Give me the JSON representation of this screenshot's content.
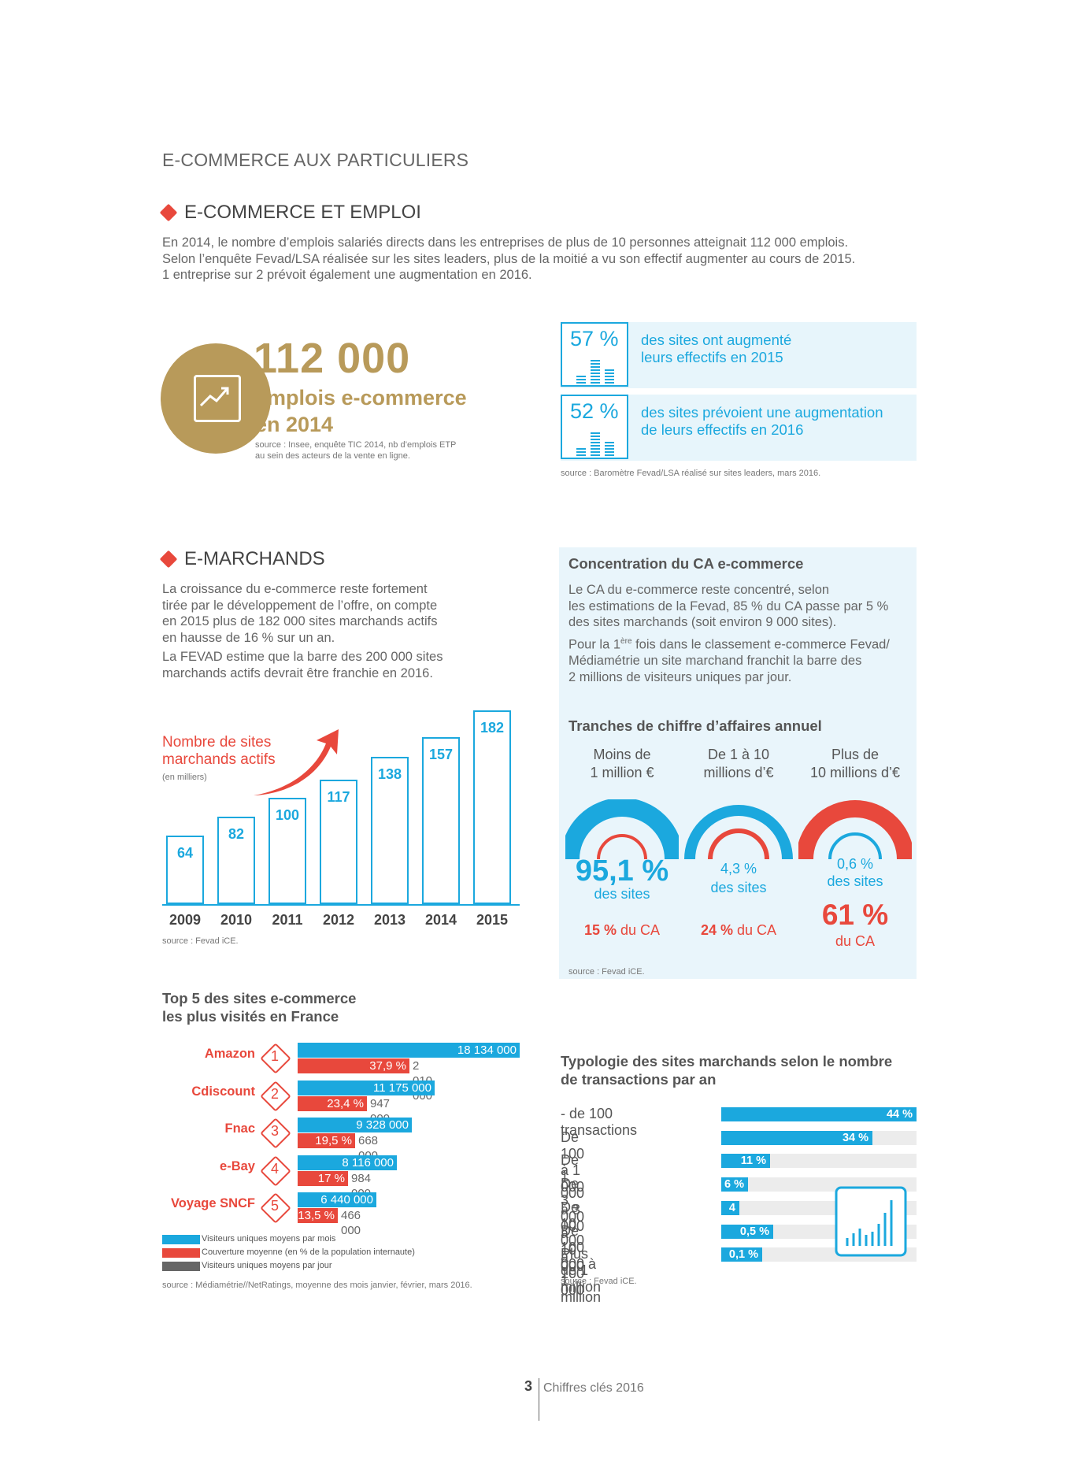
{
  "header": {
    "title": "E-COMMERCE AUX PARTICULIERS"
  },
  "emploi": {
    "title": "E-COMMERCE ET EMPLOI",
    "lines": [
      "En 2014, le nombre d’emplois salariés directs dans les entreprises de plus de 10 personnes atteignait 112 000 emplois.",
      "Selon l’enquête Fevad/LSA réalisée sur les sites leaders, plus de la moitié a vu son effectif augmenter au cours de 2015.",
      "1 entreprise sur 2 prévoit également une augmentation en 2016."
    ],
    "big_number": "112 000",
    "big_label_1": "emplois e-commerce",
    "big_label_2": "en 2014",
    "big_source_1": "source : Insee, enquête TIC 2014, nb d’emplois ETP",
    "big_source_2": "au sein des acteurs de la vente en ligne.",
    "stat1": {
      "value": "57 %",
      "line1": "des sites ont augmenté",
      "line2": "leurs effectifs en 2015"
    },
    "stat2": {
      "value": "52 %",
      "line1": "des sites prévoient une augmentation",
      "line2": "de leurs effectifs en 2016"
    },
    "stat_source": "source : Baromètre Fevad/LSA réalisé sur sites leaders, mars 2016."
  },
  "marchands": {
    "title": "E-MARCHANDS",
    "p1": [
      "La croissance du e-commerce reste fortement",
      "tirée par le développement de l’offre, on compte",
      "en 2015 plus de 182 000 sites marchands actifs",
      "en hausse de 16 % sur un an."
    ],
    "p2": [
      "La FEVAD estime que la barre des 200 000 sites",
      "marchands actifs devrait être franchie en 2016."
    ],
    "chart_source": "source : Fevad iCE."
  },
  "chart_data": {
    "type": "bar",
    "title": "Nombre de sites marchands actifs",
    "title_line1": "Nombre de sites",
    "title_line2": "marchands actifs",
    "subtitle": "(en milliers)",
    "categories": [
      "2009",
      "2010",
      "2011",
      "2012",
      "2013",
      "2014",
      "2015"
    ],
    "values": [
      64,
      82,
      100,
      117,
      138,
      157,
      182
    ],
    "ylim": [
      0,
      182
    ],
    "color": "#1ba8de"
  },
  "concentration": {
    "title": "Concentration du CA e-commerce",
    "p1": [
      "Le CA du e-commerce reste concentré, selon",
      "les estimations de la Fevad, 85 % du CA passe par 5 %",
      "des sites marchands (soit environ 9 000 sites)."
    ],
    "p2_pre": "Pour la 1",
    "p2_sup": "ère",
    "p2_post": " fois dans le classement e-commerce Fevad/",
    "p2_rest": [
      "Médiamétrie un site marchand franchit la barre des",
      "2 millions de visiteurs uniques par jour."
    ],
    "tranches_title": "Tranches de chiffre d’affaires annuel",
    "tranches": [
      {
        "l1": "Moins de",
        "l2": "1 million €",
        "sites_pct": "95,1 %",
        "sites_lbl": "des sites",
        "ca_pct": "15 %",
        "ca_lbl": " du CA"
      },
      {
        "l1": "De 1 à 10",
        "l2": "millions d’€",
        "sites_pct": "4,3 %",
        "sites_lbl": "des sites",
        "ca_pct": "24 %",
        "ca_lbl": " du CA"
      },
      {
        "l1": "Plus de",
        "l2": "10 millions d’€",
        "sites_pct": "0,6 %",
        "sites_lbl": "des sites",
        "ca_pct": "61 %",
        "ca_lbl": "du CA"
      }
    ],
    "source": "source : Fevad iCE."
  },
  "top5": {
    "title_1": "Top 5 des sites e-commerce",
    "title_2": "les plus visités en France",
    "items": [
      {
        "rank": "1",
        "name": "Amazon",
        "monthly": "18 134 000",
        "coverage": "37,9 %",
        "daily": "2 010 000",
        "monthly_v": 18134000
      },
      {
        "rank": "2",
        "name": "Cdiscount",
        "monthly": "11 175 000",
        "coverage": "23,4 %",
        "daily": "947 000",
        "monthly_v": 11175000
      },
      {
        "rank": "3",
        "name": "Fnac",
        "monthly": "9 328 000",
        "coverage": "19,5 %",
        "daily": "668 000",
        "monthly_v": 9328000
      },
      {
        "rank": "4",
        "name": "e-Bay",
        "monthly": "8 116 000",
        "coverage": "17 %",
        "daily": "984 000",
        "monthly_v": 8116000
      },
      {
        "rank": "5",
        "name": "Voyage SNCF",
        "monthly": "6 440 000",
        "coverage": "13,5 %",
        "daily": "466 000",
        "monthly_v": 6440000
      }
    ],
    "legend": [
      "Visiteurs uniques moyens par mois",
      "Couverture moyenne (en % de la population internaute)",
      "Visiteurs uniques moyens par jour"
    ],
    "source": "source : Médiamétrie//NetRatings, moyenne des mois janvier, février, mars 2016."
  },
  "typologie": {
    "title_1": "Typologie des sites marchands selon le nombre",
    "title_2": "de transactions par an",
    "rows": [
      {
        "label": "- de 100 transactions",
        "pct": "44 %",
        "v": 44
      },
      {
        "label": "De 100 à 1 000",
        "pct": "34 %",
        "v": 34
      },
      {
        "label": "De 1 000 à 3 000",
        "pct": "11 %",
        "v": 11
      },
      {
        "label": "De 3 000 à 10 000",
        "pct": "6 %",
        "v": 6
      },
      {
        "label": "De 10 000 à 100 000",
        "pct": "4 %",
        "v": 4
      },
      {
        "label": "De 100 000 à 1 million",
        "pct": "0,5 %",
        "v": 0.5
      },
      {
        "label": "Plus de 1 million",
        "pct": "0,1 %",
        "v": 0.1
      }
    ],
    "source": "source : Fevad iCE."
  },
  "footer": {
    "page": "3",
    "text": "Chiffres clés 2016"
  }
}
